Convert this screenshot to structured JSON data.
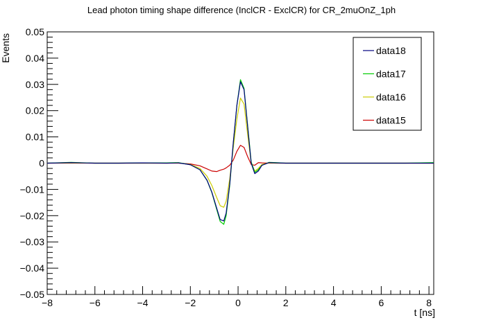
{
  "chart_data": {
    "type": "line",
    "title": "Lead photon timing shape difference (InclCR - ExclCR) for CR_2muOnZ_1ph",
    "xlabel": "t [ns]",
    "ylabel": "Events",
    "xlim": [
      -8,
      8.2
    ],
    "ylim": [
      -0.05,
      0.05
    ],
    "x_ticks": [
      -8,
      -6,
      -4,
      -2,
      0,
      2,
      4,
      6,
      8
    ],
    "x_tick_labels": [
      "−8",
      "−6",
      "−4",
      "−2",
      "0",
      "2",
      "4",
      "6",
      "8"
    ],
    "y_ticks": [
      -0.05,
      -0.04,
      -0.03,
      -0.02,
      -0.01,
      0,
      0.01,
      0.02,
      0.03,
      0.04,
      0.05
    ],
    "y_tick_labels": [
      "−0.05",
      "−0.04",
      "−0.03",
      "−0.02",
      "−0.01",
      "0",
      "0.01",
      "0.02",
      "0.03",
      "0.04",
      "0.05"
    ],
    "grid": false,
    "legend_position": "top-right",
    "x": [
      -8.0,
      -7.0,
      -6.0,
      -5.0,
      -4.0,
      -3.0,
      -2.5,
      -2.0,
      -1.6,
      -1.3,
      -1.1,
      -0.9,
      -0.75,
      -0.6,
      -0.5,
      -0.35,
      -0.2,
      -0.05,
      0.1,
      0.25,
      0.4,
      0.55,
      0.7,
      0.85,
      1.0,
      1.3,
      1.6,
      2.0,
      3.0,
      4.0,
      5.0,
      6.0,
      7.0,
      8.2
    ],
    "series": [
      {
        "name": "data18",
        "color": "#000080",
        "values": [
          0,
          0.0002,
          0,
          0,
          0.0001,
          0,
          0.0001,
          -0.0006,
          -0.0025,
          -0.0065,
          -0.011,
          -0.017,
          -0.0215,
          -0.022,
          -0.019,
          -0.008,
          0.008,
          0.022,
          0.031,
          0.028,
          0.014,
          0.0,
          -0.004,
          -0.003,
          -0.0008,
          0.0002,
          0.0001,
          0,
          0,
          0,
          0,
          0,
          0,
          0
        ]
      },
      {
        "name": "data17",
        "color": "#00cc00",
        "values": [
          0,
          0.0003,
          0,
          0,
          0.0001,
          0.0001,
          0.0002,
          -0.0006,
          -0.0025,
          -0.0066,
          -0.0112,
          -0.0175,
          -0.0222,
          -0.0233,
          -0.02,
          -0.0085,
          0.0075,
          0.022,
          0.0318,
          0.0285,
          0.0145,
          0.0005,
          -0.0035,
          -0.0025,
          -0.0008,
          0.0003,
          0.0002,
          0,
          0,
          0,
          0,
          0,
          0,
          0.0002
        ]
      },
      {
        "name": "data16",
        "color": "#cccc00",
        "values": [
          0,
          0.0001,
          0,
          0,
          0,
          0,
          0.0001,
          -0.0005,
          -0.002,
          -0.005,
          -0.0085,
          -0.013,
          -0.0162,
          -0.0168,
          -0.0145,
          -0.006,
          0.006,
          0.0168,
          0.0248,
          0.0225,
          0.011,
          0.0,
          -0.003,
          -0.002,
          -0.0005,
          0.0001,
          0,
          0,
          0,
          0,
          0,
          0,
          0,
          0
        ]
      },
      {
        "name": "data15",
        "color": "#cc0000",
        "values": [
          0,
          0,
          0,
          0,
          0,
          0,
          0,
          -0.0003,
          -0.001,
          -0.0022,
          -0.003,
          -0.0032,
          -0.0027,
          -0.0023,
          -0.0018,
          -0.0008,
          0.0012,
          0.0045,
          0.0068,
          0.006,
          0.0025,
          -0.0005,
          -0.0008,
          0.0002,
          0.0001,
          0,
          0,
          0,
          0,
          0,
          0,
          0,
          0,
          0
        ]
      }
    ]
  }
}
